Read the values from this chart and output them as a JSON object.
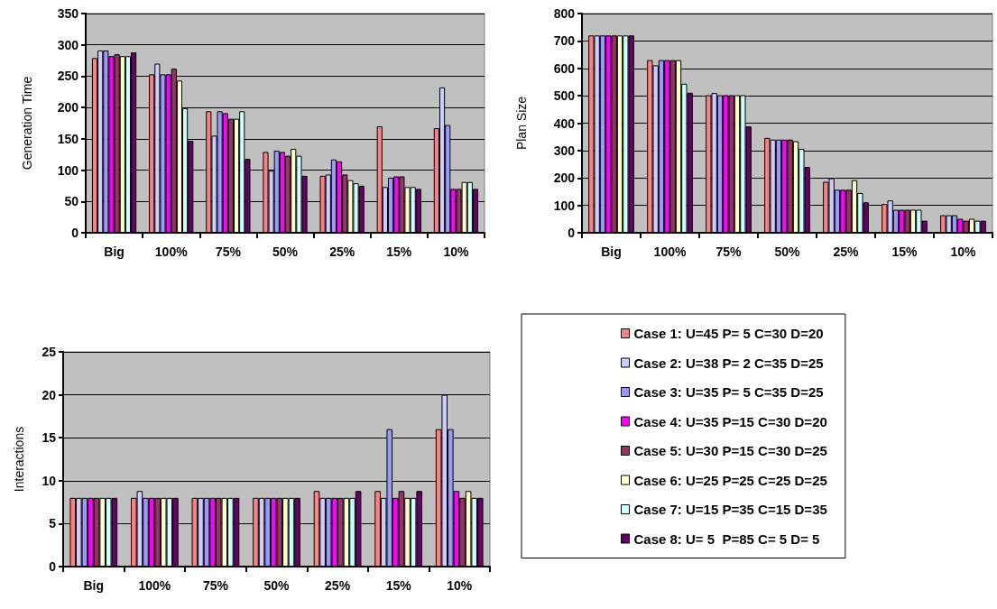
{
  "chart_data": [
    {
      "type": "bar",
      "ylabel": "Generation Time",
      "categories": [
        "Big",
        "100%",
        "75%",
        "50%",
        "25%",
        "15%",
        "10%"
      ],
      "ylim": [
        0,
        350
      ],
      "yticks": [
        0,
        50,
        100,
        150,
        200,
        250,
        300,
        350
      ],
      "grid": "y",
      "legend": false,
      "series": [
        {
          "color": "#ff8080",
          "values": [
            279,
            253,
            194,
            129,
            91,
            170,
            167
          ]
        },
        {
          "color": "#ccccff",
          "values": [
            291,
            270,
            155,
            99,
            93,
            73,
            232
          ]
        },
        {
          "color": "#9999ff",
          "values": [
            291,
            253,
            194,
            131,
            117,
            88,
            172
          ]
        },
        {
          "color": "#ff00ff",
          "values": [
            282,
            253,
            191,
            129,
            114,
            90,
            70
          ]
        },
        {
          "color": "#993366",
          "values": [
            285,
            262,
            182,
            123,
            93,
            90,
            70
          ]
        },
        {
          "color": "#ffffcc",
          "values": [
            282,
            243,
            182,
            134,
            84,
            73,
            81
          ]
        },
        {
          "color": "#ccffff",
          "values": [
            282,
            199,
            194,
            123,
            79,
            73,
            81
          ]
        },
        {
          "color": "#660066",
          "values": [
            288,
            147,
            118,
            91,
            75,
            70,
            70
          ]
        }
      ]
    },
    {
      "type": "bar",
      "ylabel": "Plan Size",
      "categories": [
        "Big",
        "100%",
        "75%",
        "50%",
        "25%",
        "15%",
        "10%"
      ],
      "ylim": [
        0,
        800
      ],
      "yticks": [
        0,
        100,
        200,
        300,
        400,
        500,
        600,
        700,
        800
      ],
      "grid": "y",
      "legend": false,
      "series": [
        {
          "color": "#ff8080",
          "values": [
            720,
            630,
            502,
            346,
            186,
            105,
            64
          ]
        },
        {
          "color": "#ccccff",
          "values": [
            720,
            611,
            510,
            340,
            199,
            118,
            64
          ]
        },
        {
          "color": "#9999ff",
          "values": [
            720,
            630,
            502,
            340,
            157,
            84,
            64
          ]
        },
        {
          "color": "#ff00ff",
          "values": [
            720,
            630,
            502,
            340,
            157,
            84,
            51
          ]
        },
        {
          "color": "#993366",
          "values": [
            720,
            630,
            502,
            340,
            157,
            84,
            44
          ]
        },
        {
          "color": "#ffffcc",
          "values": [
            720,
            630,
            502,
            334,
            192,
            84,
            51
          ]
        },
        {
          "color": "#ccffff",
          "values": [
            720,
            544,
            502,
            306,
            145,
            84,
            44
          ]
        },
        {
          "color": "#660066",
          "values": [
            720,
            511,
            388,
            240,
            111,
            44,
            44
          ]
        }
      ]
    },
    {
      "type": "bar",
      "ylabel": "Interactions",
      "categories": [
        "Big",
        "100%",
        "75%",
        "50%",
        "25%",
        "15%",
        "10%"
      ],
      "ylim": [
        0,
        25
      ],
      "yticks": [
        0,
        5,
        10,
        15,
        20,
        25
      ],
      "grid": "y",
      "legend": "right",
      "series": [
        {
          "name": "Case 1: U=45 P= 5 C=30 D=20",
          "color": "#ff8080",
          "values": [
            8,
            8,
            8,
            8,
            8.8,
            8.8,
            16
          ]
        },
        {
          "name": "Case 2: U=38 P= 2 C=35 D=25",
          "color": "#ccccff",
          "values": [
            8,
            8.8,
            8,
            8,
            8,
            8,
            20
          ]
        },
        {
          "name": "Case 3: U=35 P= 5 C=35 D=25",
          "color": "#9999ff",
          "values": [
            8,
            8,
            8,
            8,
            8,
            16,
            16
          ]
        },
        {
          "name": "Case 4: U=35 P=15 C=30 D=20",
          "color": "#ff00ff",
          "values": [
            8,
            8,
            8,
            8,
            8,
            8,
            8.8
          ]
        },
        {
          "name": "Case 5: U=30 P=15 C=30 D=25",
          "color": "#993366",
          "values": [
            8,
            8,
            8,
            8,
            8,
            8.8,
            8
          ]
        },
        {
          "name": "Case 6: U=25 P=25 C=25 D=25",
          "color": "#ffffcc",
          "values": [
            8,
            8,
            8,
            8,
            8,
            8,
            8.8
          ]
        },
        {
          "name": "Case 7: U=15 P=35 C=15 D=35",
          "color": "#ccffff",
          "values": [
            8,
            8,
            8,
            8,
            8,
            8,
            8
          ]
        },
        {
          "name": "Case 8: U= 5  P=85 C= 5 D= 5",
          "color": "#660066",
          "values": [
            8,
            8,
            8,
            8,
            8.8,
            8.8,
            8
          ]
        }
      ]
    }
  ]
}
